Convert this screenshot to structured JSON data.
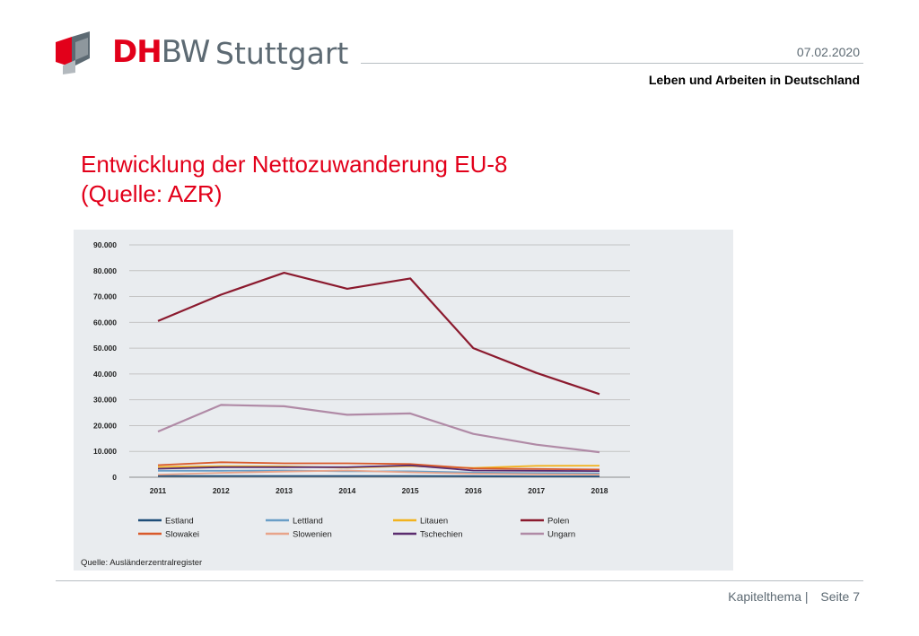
{
  "header": {
    "logo_text_1": "DH",
    "logo_text_2": "BW",
    "logo_city": "Stuttgart",
    "date": "07.02.2020",
    "subtitle": "Leben und Arbeiten in Deutschland"
  },
  "slide": {
    "title_line1": "Entwicklung der Nettozuwanderung EU-8",
    "title_line2": "(Quelle: AZR)"
  },
  "footer": {
    "chapter": "Kapitelthema |",
    "page": "Seite 7"
  },
  "colors": {
    "brand_red": "#e2001a",
    "brand_grey": "#5d6a73",
    "chart_bg": "#e9ecef"
  },
  "chart_data": {
    "type": "line",
    "title": "",
    "xlabel": "",
    "ylabel": "",
    "x": [
      "2011",
      "2012",
      "2013",
      "2014",
      "2015",
      "2016",
      "2017",
      "2018"
    ],
    "ylim": [
      0,
      90000
    ],
    "yticks": [
      "0",
      "10.000",
      "20.000",
      "30.000",
      "40.000",
      "50.000",
      "60.000",
      "70.000",
      "80.000",
      "90.000"
    ],
    "grid": true,
    "legend_position": "bottom",
    "source": "Quelle: Ausländerzentralregister",
    "series": [
      {
        "name": "Estland",
        "color": "#1f4e79",
        "values": [
          500,
          500,
          500,
          500,
          500,
          400,
          300,
          300
        ]
      },
      {
        "name": "Lettland",
        "color": "#6a9ec7",
        "values": [
          2500,
          2500,
          2600,
          2300,
          2300,
          1800,
          1600,
          1500
        ]
      },
      {
        "name": "Litauen",
        "color": "#f2b320",
        "values": [
          4000,
          4300,
          4200,
          3700,
          4300,
          3600,
          4400,
          4500
        ]
      },
      {
        "name": "Polen",
        "color": "#8b1a2e",
        "values": [
          60500,
          70700,
          79200,
          73000,
          77000,
          50000,
          40400,
          32200
        ]
      },
      {
        "name": "Slowakei",
        "color": "#d95a2b",
        "values": [
          4700,
          5800,
          5400,
          5400,
          5100,
          3400,
          3200,
          3000
        ]
      },
      {
        "name": "Slowenien",
        "color": "#e8a48a",
        "values": [
          1000,
          1700,
          2200,
          2600,
          1900,
          1400,
          1100,
          1000
        ]
      },
      {
        "name": "Tschechien",
        "color": "#5b2c6f",
        "values": [
          3300,
          3900,
          3900,
          3900,
          4600,
          2600,
          2500,
          2400
        ]
      },
      {
        "name": "Ungarn",
        "color": "#b08aa6",
        "values": [
          17700,
          28000,
          27500,
          24200,
          24700,
          16800,
          12600,
          9700
        ]
      }
    ]
  }
}
